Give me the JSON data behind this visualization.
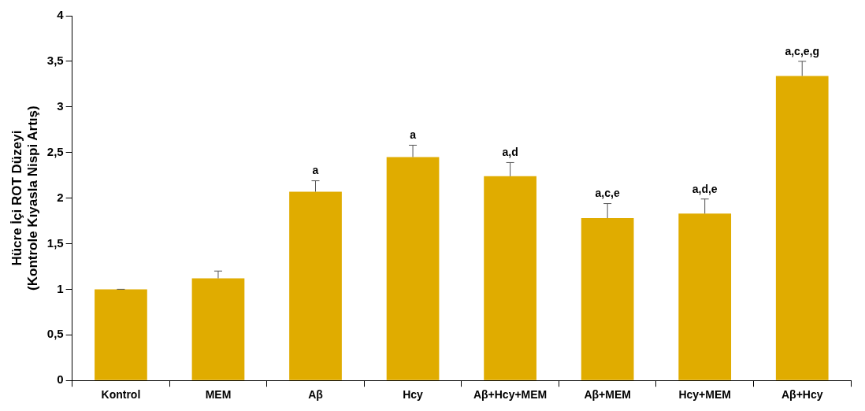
{
  "chart_data": {
    "type": "bar",
    "ylabel": "Hücre İçi ROT Düzeyi\n(Kontrole Kıyasla Nispi Artış)",
    "categories": [
      "Kontrol",
      "MEM",
      "Aβ",
      "Hcy",
      "Aβ+Hcy+MEM",
      "Aβ+MEM",
      "Hcy+MEM",
      "Aβ+Hcy"
    ],
    "values": [
      1.0,
      1.12,
      2.07,
      2.45,
      2.24,
      1.78,
      1.83,
      3.34
    ],
    "errors": [
      [
        1.0,
        1.0
      ],
      [
        1.12,
        1.2
      ],
      [
        2.07,
        2.19
      ],
      [
        2.45,
        2.58
      ],
      [
        2.24,
        2.39
      ],
      [
        1.78,
        1.94
      ],
      [
        1.83,
        1.99
      ],
      [
        3.34,
        3.5
      ]
    ],
    "color": "#e0ac00",
    "ylim": [
      0,
      4
    ],
    "yticks": [
      0,
      {
        "value": 0.5,
        "label": "0,5"
      },
      1,
      {
        "value": 1.5,
        "label": "1,5"
      },
      2,
      {
        "value": 2.5,
        "label": "2,5"
      },
      3,
      {
        "value": 3.5,
        "label": "3,5"
      },
      4
    ],
    "annotations": [
      {
        "text": "a",
        "x": "Aβ",
        "y": 2.19
      },
      {
        "text": "a",
        "x": "Hcy",
        "y": 2.58
      },
      {
        "text": "a,d",
        "x": "Aβ+Hcy+MEM",
        "y": 2.39
      },
      {
        "text": "a,c,e",
        "x": "Aβ+MEM",
        "y": 1.94
      },
      {
        "text": "a,d,e",
        "x": "Hcy+MEM",
        "y": 1.99
      },
      {
        "text": "a,c,e,g",
        "x": "Aβ+Hcy",
        "y": 3.5
      }
    ],
    "grid": false,
    "legend": false
  }
}
